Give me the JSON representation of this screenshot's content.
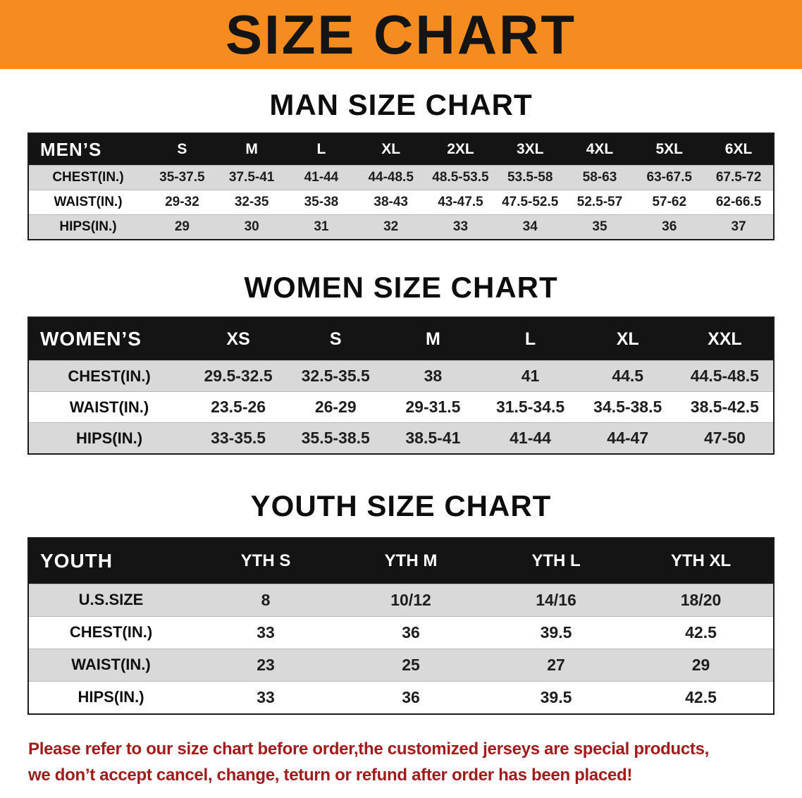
{
  "colors": {
    "banner_bg": "#F68B1F",
    "header_bg": "#141414",
    "stripe": "#D9D9D9",
    "disclaimer": "#A11B1B"
  },
  "banner": {
    "title": "SIZE CHART"
  },
  "sections": {
    "men": {
      "heading": "MAN SIZE CHART",
      "table": {
        "corner": "MEN’S",
        "columns": [
          "S",
          "M",
          "L",
          "XL",
          "2XL",
          "3XL",
          "4XL",
          "5XL",
          "6XL"
        ],
        "rows": [
          {
            "label": "CHEST(IN.)",
            "values": [
              "35-37.5",
              "37.5-41",
              "41-44",
              "44-48.5",
              "48.5-53.5",
              "53.5-58",
              "58-63",
              "63-67.5",
              "67.5-72"
            ]
          },
          {
            "label": "WAIST(IN.)",
            "values": [
              "29-32",
              "32-35",
              "35-38",
              "38-43",
              "43-47.5",
              "47.5-52.5",
              "52.5-57",
              "57-62",
              "62-66.5"
            ]
          },
          {
            "label": "HIPS(IN.)",
            "values": [
              "29",
              "30",
              "31",
              "32",
              "33",
              "34",
              "35",
              "36",
              "37"
            ]
          }
        ]
      }
    },
    "women": {
      "heading": "WOMEN SIZE CHART",
      "table": {
        "corner": "WOMEN’S",
        "columns": [
          "XS",
          "S",
          "M",
          "L",
          "XL",
          "XXL"
        ],
        "rows": [
          {
            "label": "CHEST(IN.)",
            "values": [
              "29.5-32.5",
              "32.5-35.5",
              "38",
              "41",
              "44.5",
              "44.5-48.5"
            ]
          },
          {
            "label": "WAIST(IN.)",
            "values": [
              "23.5-26",
              "26-29",
              "29-31.5",
              "31.5-34.5",
              "34.5-38.5",
              "38.5-42.5"
            ]
          },
          {
            "label": "HIPS(IN.)",
            "values": [
              "33-35.5",
              "35.5-38.5",
              "38.5-41",
              "41-44",
              "44-47",
              "47-50"
            ]
          }
        ]
      }
    },
    "youth": {
      "heading": "YOUTH SIZE CHART",
      "table": {
        "corner": "YOUTH",
        "columns": [
          "YTH S",
          "YTH M",
          "YTH L",
          "YTH XL"
        ],
        "rows": [
          {
            "label": "U.S.SIZE",
            "values": [
              "8",
              "10/12",
              "14/16",
              "18/20"
            ]
          },
          {
            "label": "CHEST(IN.)",
            "values": [
              "33",
              "36",
              "39.5",
              "42.5"
            ]
          },
          {
            "label": "WAIST(IN.)",
            "values": [
              "23",
              "25",
              "27",
              "29"
            ]
          },
          {
            "label": "HIPS(IN.)",
            "values": [
              "33",
              "36",
              "39.5",
              "42.5"
            ]
          }
        ]
      }
    }
  },
  "disclaimer": {
    "line1": "Please refer to our size chart before order,the customized jerseys are special products,",
    "line2": "we don’t accept cancel, change, teturn or refund after order has been placed!"
  }
}
